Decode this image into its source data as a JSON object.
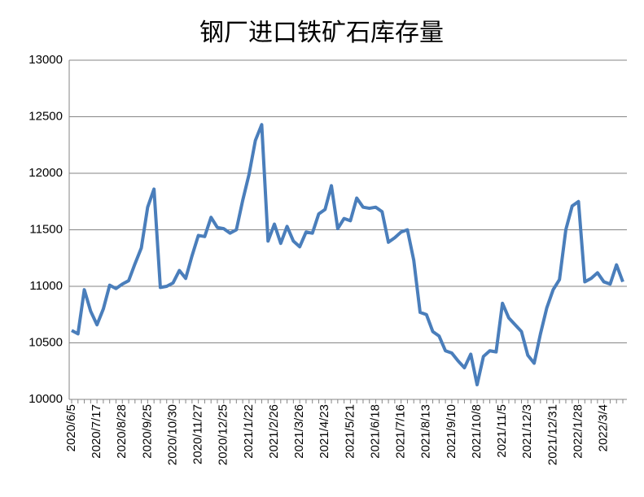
{
  "chart_data": {
    "type": "line",
    "title": "钢厂进口铁矿石库存量",
    "categories": [
      "2020/6/5",
      null,
      null,
      null,
      "2020/7/17",
      null,
      null,
      null,
      "2020/8/28",
      null,
      null,
      null,
      "2020/9/25",
      null,
      null,
      null,
      "2020/10/30",
      null,
      null,
      null,
      "2020/11/27",
      null,
      null,
      null,
      "2020/12/25",
      null,
      null,
      null,
      "2021/1/22",
      null,
      null,
      null,
      "2021/2/26",
      null,
      null,
      null,
      "2021/3/26",
      null,
      null,
      null,
      "2021/4/23",
      null,
      null,
      null,
      "2021/5/21",
      null,
      null,
      null,
      "2021/6/18",
      null,
      null,
      null,
      "2021/7/16",
      null,
      null,
      null,
      "2021/8/13",
      null,
      null,
      null,
      "2021/9/10",
      null,
      null,
      null,
      "2021/10/8",
      null,
      null,
      null,
      "2021/11/5",
      null,
      null,
      null,
      "2021/12/3",
      null,
      null,
      null,
      "2021/12/31",
      null,
      null,
      null,
      "2022/1/28",
      null,
      null,
      null,
      "2022/3/4",
      null,
      null,
      null
    ],
    "series": [
      {
        "color": "#4a7ebb",
        "values": [
          10610,
          10580,
          10970,
          10780,
          10660,
          10800,
          11010,
          10980,
          11020,
          11050,
          11200,
          11340,
          11700,
          11860,
          10990,
          11000,
          11030,
          11140,
          11070,
          11270,
          11450,
          11440,
          11610,
          11520,
          11510,
          11470,
          11500,
          11760,
          11990,
          12290,
          12430,
          11400,
          11550,
          11380,
          11530,
          11400,
          11350,
          11480,
          11470,
          11640,
          11680,
          11890,
          11510,
          11600,
          11580,
          11780,
          11700,
          11690,
          11700,
          11660,
          11390,
          11430,
          11480,
          11500,
          11230,
          10770,
          10750,
          10600,
          10560,
          10430,
          10410,
          10340,
          10280,
          10400,
          10130,
          10380,
          10430,
          10420,
          10850,
          10720,
          10660,
          10600,
          10390,
          10320,
          10580,
          10810,
          10970,
          11060,
          11500,
          11710,
          11750,
          11040,
          11070,
          11120,
          11040,
          11020,
          11190,
          11040
        ]
      }
    ],
    "ylim": [
      10000,
      13000
    ],
    "yticks": [
      10000,
      10500,
      11000,
      11500,
      12000,
      12500,
      13000
    ],
    "grid": true
  }
}
